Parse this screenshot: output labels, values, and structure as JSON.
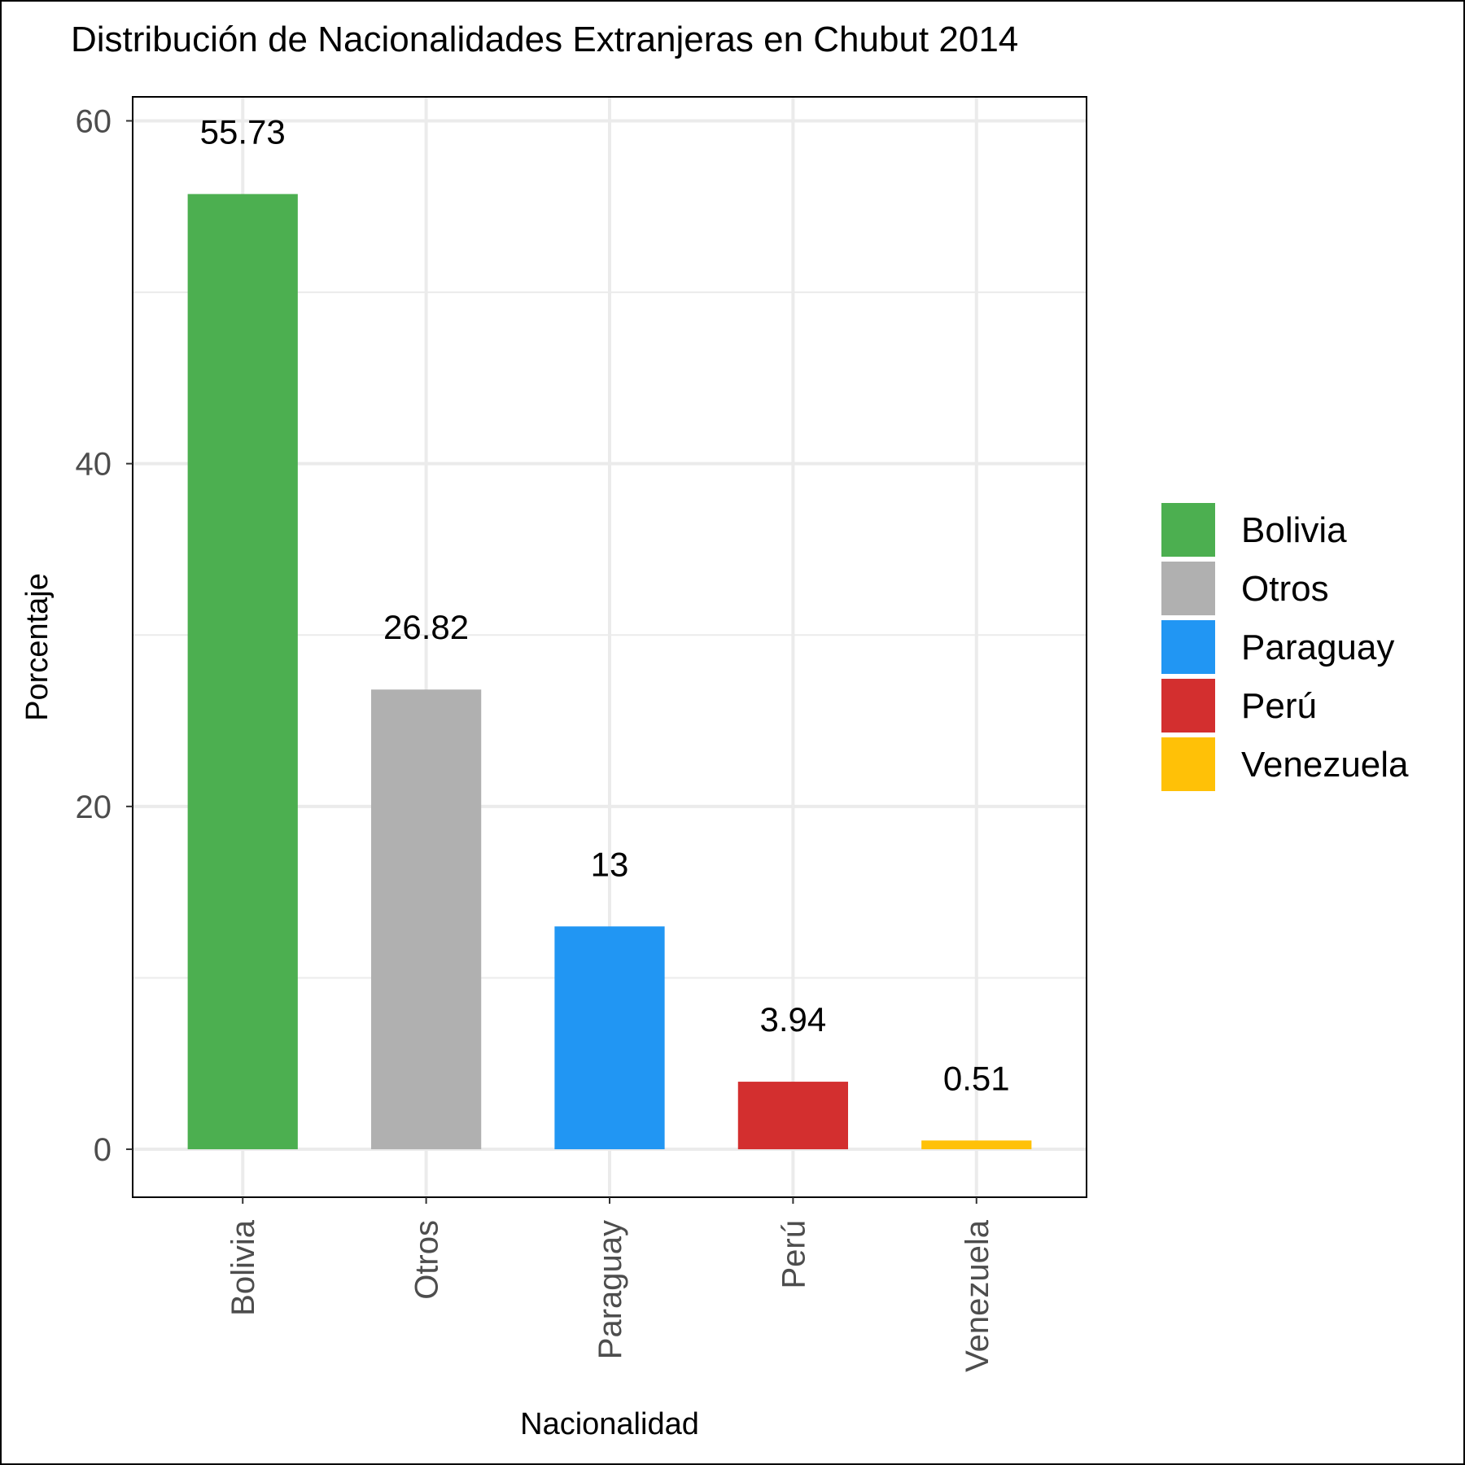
{
  "chart_data": {
    "type": "bar",
    "title": "Distribución de Nacionalidades Extranjeras en Chubut 2014",
    "xlabel": "Nacionalidad",
    "ylabel": "Porcentaje",
    "categories": [
      "Bolivia",
      "Otros",
      "Paraguay",
      "Perú",
      "Venezuela"
    ],
    "values": [
      55.73,
      26.82,
      13,
      3.94,
      0.51
    ],
    "data_labels": [
      "55.73",
      "26.82",
      "13",
      "3.94",
      "0.51"
    ],
    "colors": [
      "#4caf50",
      "#b0b0b0",
      "#2196f3",
      "#d32f2f",
      "#ffc107"
    ],
    "ylim": [
      -2.8,
      61.4
    ],
    "yticks": [
      0,
      20,
      40,
      60
    ],
    "y_minor_ticks": [
      10,
      30,
      50
    ],
    "grid": true,
    "x_tick_rotation": -90,
    "legend": {
      "placement": "right",
      "entries": [
        "Bolivia",
        "Otros",
        "Paraguay",
        "Perú",
        "Venezuela"
      ]
    }
  }
}
